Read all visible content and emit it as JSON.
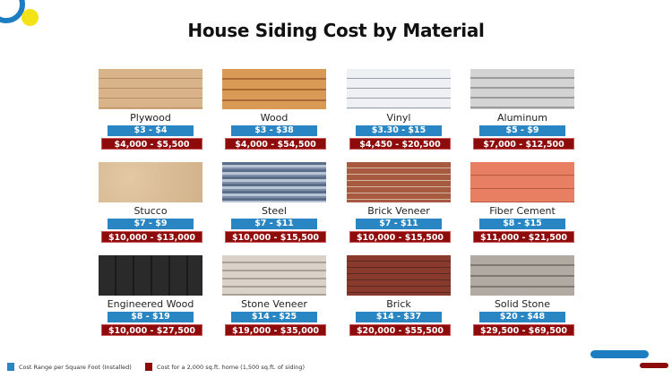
{
  "title": "House Siding Cost by Material",
  "colors": {
    "sqft": "#2a86c2",
    "home": "#8e0b0b",
    "logo_ring": "#1e7cc0",
    "logo_dot": "#f3e316"
  },
  "materials": [
    {
      "name": "Plywood",
      "sqft": "$3 - $4",
      "home": "$4,000 - $5,500"
    },
    {
      "name": "Wood",
      "sqft": "$3 - $38",
      "home": "$4,000 - $54,500"
    },
    {
      "name": "Vinyl",
      "sqft": "$3.30 - $15",
      "home": "$4,450 - $20,500"
    },
    {
      "name": "Aluminum",
      "sqft": "$5 - $9",
      "home": "$7,000 - $12,500"
    },
    {
      "name": "Stucco",
      "sqft": "$7 - $9",
      "home": "$10,000 - $13,000"
    },
    {
      "name": "Steel",
      "sqft": "$7 - $11",
      "home": "$10,000 - $15,500"
    },
    {
      "name": "Brick Veneer",
      "sqft": "$7 - $11",
      "home": "$10,000 - $15,500"
    },
    {
      "name": "Fiber Cement",
      "sqft": "$8 - $15",
      "home": "$11,000 - $21,500"
    },
    {
      "name": "Engineered Wood",
      "sqft": "$8 - $19",
      "home": "$10,000 - $27,500"
    },
    {
      "name": "Stone Veneer",
      "sqft": "$14 - $25",
      "home": "$19,000 - $35,000"
    },
    {
      "name": "Brick",
      "sqft": "$14 - $37",
      "home": "$20,000 - $55,500"
    },
    {
      "name": "Solid Stone",
      "sqft": "$20 - $48",
      "home": "$29,500 - $69,500"
    }
  ],
  "legend": {
    "sqft": "Cost Range per Square Foot (Installed)",
    "home": "Cost for a 2,000 sq.ft. home (1,500 sq.ft. of siding)"
  }
}
